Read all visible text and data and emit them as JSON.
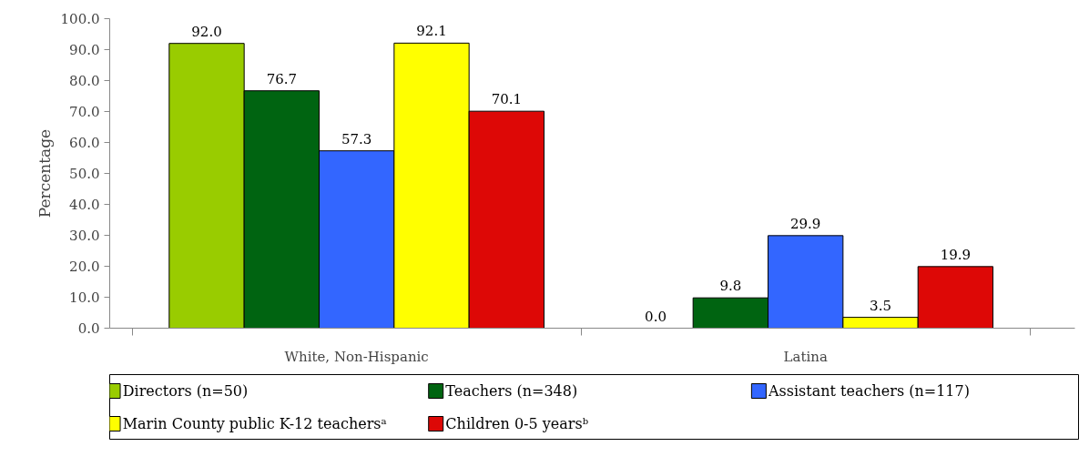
{
  "chart_data": {
    "type": "bar",
    "ylabel": "Percentage",
    "categories": [
      "White, Non-Hispanic",
      "Latina"
    ],
    "series": [
      {
        "name": "Directors (n=50)",
        "color": "#99cc00",
        "values": [
          92.0,
          0.0
        ],
        "value_labels": [
          "92.0",
          "0.0"
        ]
      },
      {
        "name": "Teachers (n=348)",
        "color": "#006411",
        "values": [
          76.7,
          9.8
        ],
        "value_labels": [
          "76.7",
          "9.8"
        ]
      },
      {
        "name": "Assistant teachers (n=117)",
        "color": "#3366ff",
        "values": [
          57.3,
          29.9
        ],
        "value_labels": [
          "57.3",
          "29.9"
        ]
      },
      {
        "name": "Marin County public K-12 teachersᵃ",
        "color": "#ffff00",
        "values": [
          92.1,
          3.5
        ],
        "value_labels": [
          "92.1",
          "3.5"
        ]
      },
      {
        "name": "Children 0-5 yearsᵇ",
        "color": "#dd0806",
        "values": [
          70.1,
          19.9
        ],
        "value_labels": [
          "70.1",
          "19.9"
        ]
      }
    ],
    "ylim": [
      0,
      100
    ],
    "yticks": [
      {
        "value": 0,
        "label": "0.0"
      },
      {
        "value": 10,
        "label": "10.0"
      },
      {
        "value": 20,
        "label": "20.0"
      },
      {
        "value": 30,
        "label": "30.0"
      },
      {
        "value": 40,
        "label": "40.0"
      },
      {
        "value": 50,
        "label": "50.0"
      },
      {
        "value": 60,
        "label": "60.0"
      },
      {
        "value": 70,
        "label": "70.0"
      },
      {
        "value": 80,
        "label": "80.0"
      },
      {
        "value": 90,
        "label": "90.0"
      },
      {
        "value": 100,
        "label": "100.0"
      }
    ],
    "grid": false,
    "legend": "bottom"
  }
}
